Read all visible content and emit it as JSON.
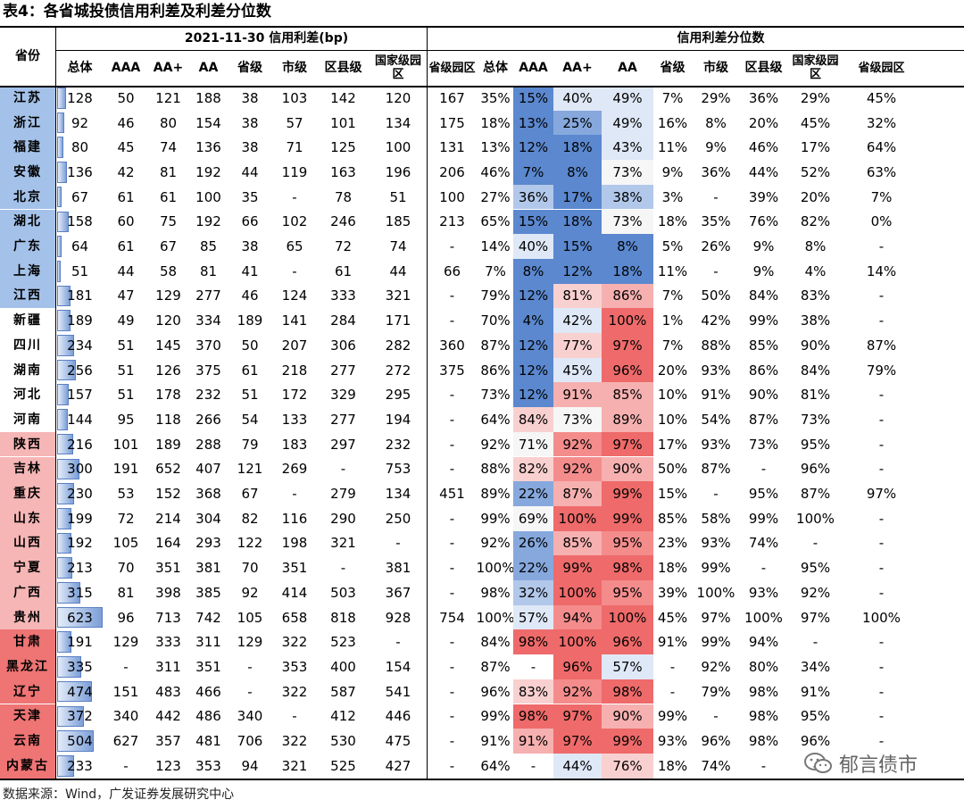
{
  "title": "表4：各省城投债信用利差及利差分位数",
  "header": {
    "province": "省份",
    "spread_group": "2021-11-30 信用利差(bp)",
    "pct_group": "信用利差分位数",
    "spread_cols": [
      "总体",
      "AAA",
      "AA+",
      "AA",
      "省级",
      "市级",
      "区县级",
      "国家级园区",
      "省级园区"
    ],
    "pct_cols": [
      "总体",
      "AAA",
      "AA+",
      "AA",
      "省级",
      "市级",
      "区县级",
      "国家级园区",
      "省级园区"
    ]
  },
  "province_colors": {
    "blue": "#a4c2e9",
    "white": "#ffffff",
    "pink": "#f6b6b6",
    "red": "#ef7474"
  },
  "overall_max": 623,
  "chart_data": {
    "type": "table",
    "rows": [
      {
        "province": "江苏",
        "group": "blue",
        "spread": [
          "128",
          "50",
          "121",
          "188",
          "38",
          "103",
          "142",
          "120",
          "167"
        ],
        "pct": [
          "35%",
          "15%",
          "40%",
          "49%",
          "7%",
          "29%",
          "36%",
          "29%",
          "45%"
        ]
      },
      {
        "province": "浙江",
        "group": "blue",
        "spread": [
          "92",
          "46",
          "80",
          "154",
          "38",
          "57",
          "101",
          "134",
          "175"
        ],
        "pct": [
          "18%",
          "13%",
          "25%",
          "49%",
          "16%",
          "8%",
          "20%",
          "45%",
          "32%"
        ]
      },
      {
        "province": "福建",
        "group": "blue",
        "spread": [
          "80",
          "45",
          "74",
          "136",
          "38",
          "71",
          "125",
          "100",
          "131"
        ],
        "pct": [
          "13%",
          "12%",
          "18%",
          "43%",
          "11%",
          "9%",
          "46%",
          "17%",
          "64%"
        ]
      },
      {
        "province": "安徽",
        "group": "blue",
        "spread": [
          "136",
          "42",
          "81",
          "192",
          "44",
          "119",
          "163",
          "196",
          "206"
        ],
        "pct": [
          "46%",
          "7%",
          "8%",
          "73%",
          "9%",
          "36%",
          "44%",
          "52%",
          "63%"
        ]
      },
      {
        "province": "北京",
        "group": "blue",
        "spread": [
          "67",
          "61",
          "61",
          "100",
          "35",
          "-",
          "78",
          "51",
          "100"
        ],
        "pct": [
          "27%",
          "36%",
          "17%",
          "38%",
          "3%",
          "-",
          "39%",
          "20%",
          "7%"
        ]
      },
      {
        "province": "湖北",
        "group": "blue",
        "spread": [
          "158",
          "60",
          "75",
          "192",
          "66",
          "102",
          "246",
          "185",
          "213"
        ],
        "pct": [
          "65%",
          "15%",
          "18%",
          "73%",
          "18%",
          "35%",
          "76%",
          "82%",
          "0%"
        ]
      },
      {
        "province": "广东",
        "group": "blue",
        "spread": [
          "64",
          "61",
          "67",
          "85",
          "38",
          "65",
          "72",
          "74",
          "-"
        ],
        "pct": [
          "14%",
          "40%",
          "15%",
          "8%",
          "5%",
          "26%",
          "9%",
          "8%",
          "-"
        ]
      },
      {
        "province": "上海",
        "group": "blue",
        "spread": [
          "51",
          "44",
          "58",
          "81",
          "41",
          "-",
          "61",
          "44",
          "66"
        ],
        "pct": [
          "7%",
          "8%",
          "12%",
          "18%",
          "11%",
          "-",
          "9%",
          "4%",
          "14%"
        ]
      },
      {
        "province": "江西",
        "group": "blue",
        "spread": [
          "181",
          "47",
          "129",
          "277",
          "46",
          "124",
          "333",
          "321",
          "-"
        ],
        "pct": [
          "79%",
          "12%",
          "81%",
          "86%",
          "7%",
          "50%",
          "84%",
          "83%",
          "-"
        ]
      },
      {
        "province": "新疆",
        "group": "white",
        "spread": [
          "189",
          "49",
          "120",
          "334",
          "189",
          "141",
          "284",
          "171",
          "-"
        ],
        "pct": [
          "70%",
          "4%",
          "42%",
          "100%",
          "1%",
          "42%",
          "99%",
          "38%",
          "-"
        ]
      },
      {
        "province": "四川",
        "group": "white",
        "spread": [
          "234",
          "51",
          "145",
          "370",
          "50",
          "207",
          "306",
          "282",
          "360"
        ],
        "pct": [
          "87%",
          "12%",
          "77%",
          "97%",
          "7%",
          "88%",
          "85%",
          "90%",
          "87%"
        ]
      },
      {
        "province": "湖南",
        "group": "white",
        "spread": [
          "256",
          "51",
          "126",
          "375",
          "61",
          "218",
          "277",
          "272",
          "375"
        ],
        "pct": [
          "86%",
          "12%",
          "45%",
          "96%",
          "20%",
          "93%",
          "86%",
          "84%",
          "79%"
        ]
      },
      {
        "province": "河北",
        "group": "white",
        "spread": [
          "157",
          "51",
          "178",
          "232",
          "51",
          "172",
          "329",
          "295",
          "-"
        ],
        "pct": [
          "73%",
          "12%",
          "91%",
          "85%",
          "10%",
          "91%",
          "90%",
          "81%",
          "-"
        ]
      },
      {
        "province": "河南",
        "group": "white",
        "spread": [
          "144",
          "95",
          "118",
          "266",
          "54",
          "133",
          "277",
          "194",
          "-"
        ],
        "pct": [
          "64%",
          "84%",
          "73%",
          "89%",
          "10%",
          "54%",
          "87%",
          "73%",
          "-"
        ]
      },
      {
        "province": "陕西",
        "group": "pink",
        "spread": [
          "216",
          "101",
          "189",
          "288",
          "79",
          "183",
          "297",
          "232",
          "-"
        ],
        "pct": [
          "92%",
          "71%",
          "92%",
          "97%",
          "17%",
          "93%",
          "73%",
          "95%",
          "-"
        ]
      },
      {
        "province": "吉林",
        "group": "pink",
        "spread": [
          "300",
          "191",
          "652",
          "407",
          "121",
          "269",
          "-",
          "753",
          "-"
        ],
        "pct": [
          "88%",
          "82%",
          "92%",
          "90%",
          "50%",
          "87%",
          "-",
          "96%",
          "-"
        ]
      },
      {
        "province": "重庆",
        "group": "pink",
        "spread": [
          "230",
          "53",
          "152",
          "368",
          "67",
          "-",
          "279",
          "134",
          "451"
        ],
        "pct": [
          "89%",
          "22%",
          "87%",
          "99%",
          "15%",
          "-",
          "95%",
          "87%",
          "97%"
        ]
      },
      {
        "province": "山东",
        "group": "pink",
        "spread": [
          "199",
          "72",
          "214",
          "304",
          "82",
          "116",
          "290",
          "250",
          "-"
        ],
        "pct": [
          "99%",
          "69%",
          "100%",
          "99%",
          "85%",
          "58%",
          "99%",
          "100%",
          "-"
        ]
      },
      {
        "province": "山西",
        "group": "pink",
        "spread": [
          "192",
          "105",
          "164",
          "293",
          "122",
          "198",
          "321",
          "-",
          "-"
        ],
        "pct": [
          "92%",
          "26%",
          "85%",
          "95%",
          "23%",
          "93%",
          "74%",
          "-",
          "-"
        ]
      },
      {
        "province": "宁夏",
        "group": "pink",
        "spread": [
          "213",
          "70",
          "351",
          "381",
          "70",
          "351",
          "-",
          "381",
          "-"
        ],
        "pct": [
          "100%",
          "22%",
          "99%",
          "98%",
          "18%",
          "99%",
          "-",
          "95%",
          "-"
        ]
      },
      {
        "province": "广西",
        "group": "pink",
        "spread": [
          "315",
          "81",
          "398",
          "385",
          "92",
          "414",
          "503",
          "367",
          "-"
        ],
        "pct": [
          "98%",
          "32%",
          "100%",
          "95%",
          "39%",
          "100%",
          "93%",
          "92%",
          "-"
        ]
      },
      {
        "province": "贵州",
        "group": "pink",
        "spread": [
          "623",
          "96",
          "713",
          "742",
          "105",
          "658",
          "818",
          "928",
          "754"
        ],
        "pct": [
          "100%",
          "57%",
          "94%",
          "100%",
          "45%",
          "97%",
          "100%",
          "97%",
          "100%"
        ]
      },
      {
        "province": "甘肃",
        "group": "red",
        "spread": [
          "191",
          "129",
          "333",
          "311",
          "129",
          "322",
          "523",
          "-",
          "-"
        ],
        "pct": [
          "84%",
          "98%",
          "100%",
          "96%",
          "91%",
          "99%",
          "94%",
          "-",
          "-"
        ]
      },
      {
        "province": "黑龙江",
        "group": "red",
        "spread": [
          "335",
          "-",
          "311",
          "351",
          "-",
          "353",
          "400",
          "154",
          "-"
        ],
        "pct": [
          "87%",
          "-",
          "96%",
          "57%",
          "-",
          "92%",
          "80%",
          "34%",
          "-"
        ]
      },
      {
        "province": "辽宁",
        "group": "red",
        "spread": [
          "474",
          "151",
          "483",
          "466",
          "-",
          "322",
          "587",
          "541",
          "-"
        ],
        "pct": [
          "96%",
          "83%",
          "92%",
          "98%",
          "-",
          "79%",
          "98%",
          "91%",
          "-"
        ]
      },
      {
        "province": "天津",
        "group": "red",
        "spread": [
          "372",
          "340",
          "442",
          "486",
          "340",
          "-",
          "412",
          "446",
          "-"
        ],
        "pct": [
          "99%",
          "98%",
          "97%",
          "90%",
          "99%",
          "-",
          "98%",
          "95%",
          "-"
        ]
      },
      {
        "province": "云南",
        "group": "red",
        "spread": [
          "504",
          "627",
          "357",
          "481",
          "706",
          "322",
          "530",
          "475",
          "-"
        ],
        "pct": [
          "91%",
          "91%",
          "97%",
          "99%",
          "93%",
          "96%",
          "98%",
          "96%",
          "-"
        ]
      },
      {
        "province": "内蒙古",
        "group": "red",
        "spread": [
          "233",
          "-",
          "123",
          "353",
          "94",
          "321",
          "525",
          "427",
          "-"
        ],
        "pct": [
          "64%",
          "-",
          "44%",
          "76%",
          "18%",
          "74%",
          "-",
          "-",
          "-"
        ]
      }
    ]
  },
  "source": "数据来源：Wind，广发证券发展研究中心",
  "watermark": {
    "text": "郁言债市",
    "icon": "wechat-icon"
  }
}
